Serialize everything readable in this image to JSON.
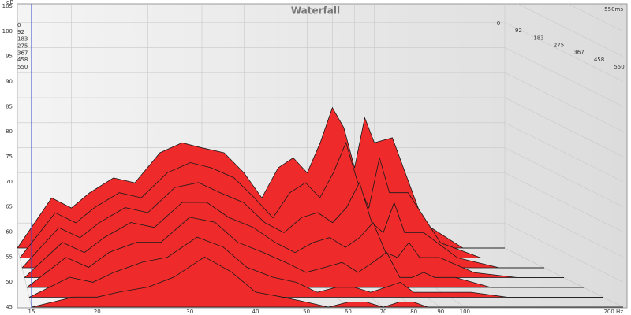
{
  "chart_data": {
    "type": "waterfall",
    "title": "Waterfall",
    "y_label": "dB",
    "depth_label": "550ms",
    "log_x": true,
    "grid": true,
    "color": "#ee2a2a",
    "xlim": [
      15,
      200
    ],
    "ylim": [
      45,
      105
    ],
    "xticks": [
      15,
      20,
      30,
      40,
      50,
      60,
      70,
      80,
      90,
      100,
      {
        "value": 200,
        "label": "200 Hz"
      }
    ],
    "yticks": [
      45,
      50,
      55,
      60,
      65,
      70,
      75,
      80,
      85,
      90,
      95,
      100,
      105
    ],
    "x": [
      15,
      18,
      20,
      22,
      25,
      28,
      32,
      36,
      40,
      45,
      50,
      55,
      60,
      65,
      70,
      75,
      80,
      85,
      90,
      95,
      100,
      110,
      130,
      160,
      200
    ],
    "series": [
      {
        "name": "0",
        "values": [
          45,
          55,
          53,
          56,
          59,
          58,
          64,
          66,
          65,
          64,
          60,
          55,
          61,
          63,
          60,
          66,
          73,
          69,
          61,
          71,
          66,
          67,
          50,
          45,
          45
        ]
      },
      {
        "name": "92",
        "values": [
          45,
          54,
          52,
          55,
          58,
          57,
          62,
          64,
          63,
          61,
          57,
          53,
          58,
          60,
          57,
          62,
          68,
          60,
          55,
          65,
          58,
          58,
          48,
          45,
          45
        ]
      },
      {
        "name": "183",
        "values": [
          45,
          53,
          51,
          54,
          57,
          56,
          61,
          62,
          60,
          58,
          54,
          52,
          55,
          56,
          54,
          57,
          62,
          54,
          52,
          58,
          52,
          52,
          47,
          45,
          45
        ]
      },
      {
        "name": "275",
        "values": [
          45,
          52,
          50,
          53,
          56,
          55,
          60,
          60,
          57,
          55,
          52,
          50,
          52,
          53,
          51,
          53,
          56,
          50,
          49,
          52,
          49,
          49,
          46,
          45,
          45
        ]
      },
      {
        "name": "367",
        "values": [
          45,
          51,
          49,
          52,
          54,
          54,
          59,
          58,
          54,
          52,
          50,
          48,
          49,
          50,
          48,
          50,
          52,
          47,
          47,
          48,
          47,
          47,
          45,
          45,
          45
        ]
      },
      {
        "name": "458",
        "values": [
          45,
          49,
          48,
          50,
          52,
          53,
          57,
          55,
          51,
          49,
          48,
          46,
          47,
          47,
          46,
          47,
          48,
          46,
          46,
          46,
          46,
          46,
          45,
          45,
          45
        ]
      },
      {
        "name": "550",
        "values": [
          45,
          47,
          47,
          48,
          49,
          51,
          55,
          52,
          48,
          47,
          46,
          45,
          46,
          46,
          45,
          46,
          46,
          45,
          45,
          45,
          45,
          45,
          45,
          45,
          45
        ]
      }
    ]
  }
}
